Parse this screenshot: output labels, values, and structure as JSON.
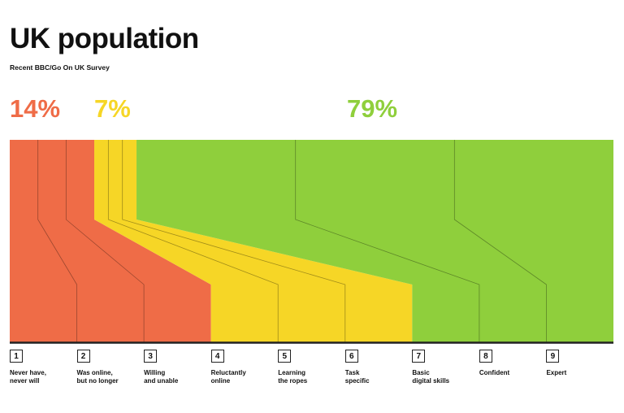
{
  "header": {
    "title": "UK population",
    "subtitle": "Recent BBC/Go On UK Survey"
  },
  "colors": {
    "red": "#ef6c47",
    "yellow": "#f6d626",
    "green": "#8fcf3c",
    "line": "#222222"
  },
  "chart_data": {
    "type": "area",
    "title": "UK population",
    "subtitle": "Recent BBC/Go On UK Survey",
    "groups": [
      {
        "name": "red",
        "label": "14%",
        "value": 14,
        "levels": [
          1,
          2,
          3
        ]
      },
      {
        "name": "yellow",
        "label": "7%",
        "value": 7,
        "levels": [
          4,
          5,
          6
        ]
      },
      {
        "name": "green",
        "label": "79%",
        "value": 79,
        "levels": [
          7,
          8,
          9
        ]
      }
    ],
    "levels": [
      {
        "number": "1",
        "label": "Never have,\nnever will",
        "group": "red"
      },
      {
        "number": "2",
        "label": "Was online,\nbut no longer",
        "group": "red"
      },
      {
        "number": "3",
        "label": "Willing\nand unable",
        "group": "red"
      },
      {
        "number": "4",
        "label": "Reluctantly\nonline",
        "group": "yellow"
      },
      {
        "number": "5",
        "label": "Learning\nthe ropes",
        "group": "yellow"
      },
      {
        "number": "6",
        "label": "Task\nspecific",
        "group": "yellow"
      },
      {
        "number": "7",
        "label": "Basic\ndigital skills",
        "group": "green"
      },
      {
        "number": "8",
        "label": "Confident",
        "group": "green"
      },
      {
        "number": "9",
        "label": "Expert",
        "group": "green"
      }
    ]
  }
}
